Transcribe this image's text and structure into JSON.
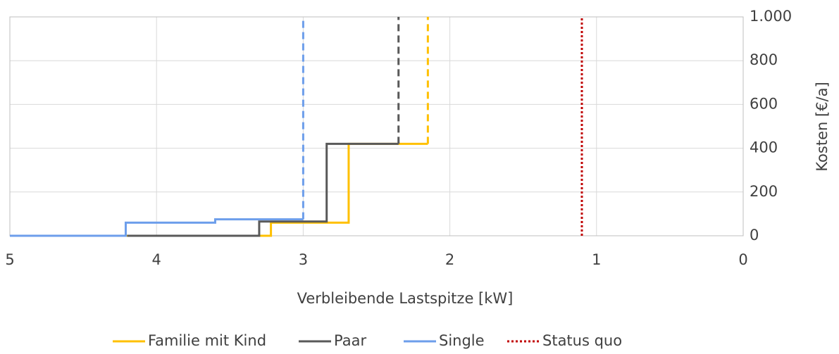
{
  "chart_data": {
    "type": "line",
    "x_label": "Verbleibende Lastspitze [kW]",
    "y_label": "Kosten [€/a]",
    "xlim": [
      5,
      0
    ],
    "xticks": [
      5,
      4,
      3,
      2,
      1,
      0
    ],
    "ylim": [
      0,
      1000
    ],
    "yticks": [
      0,
      200,
      400,
      600,
      800,
      {
        "value": 1000,
        "label": "1.000"
      }
    ],
    "grid": true,
    "legend": "bottom",
    "series": [
      {
        "name": "Familie mit Kind",
        "color": "#ffc000",
        "style": "solid",
        "dashed_from": 5,
        "x": [
          5,
          3.22,
          3.22,
          2.69,
          2.69,
          2.15,
          2.15
        ],
        "values": [
          0,
          0,
          60,
          60,
          420,
          420,
          1000
        ]
      },
      {
        "name": "Paar",
        "color": "#595959",
        "style": "solid",
        "dashed_from": 5,
        "x": [
          4.2,
          3.3,
          3.3,
          2.84,
          2.84,
          2.35,
          2.35
        ],
        "values": [
          0,
          0,
          65,
          65,
          420,
          420,
          1000
        ]
      },
      {
        "name": "Single",
        "color": "#6d9eeb",
        "style": "solid",
        "dashed_from": 5,
        "x": [
          5,
          4.21,
          4.21,
          3.6,
          3.6,
          3.0,
          3.0
        ],
        "values": [
          0,
          0,
          60,
          60,
          75,
          75,
          1000
        ]
      },
      {
        "name": "Status quo",
        "color": "#c00000",
        "style": "dotted",
        "dashed_from": 0,
        "x": [
          1.1,
          1.1
        ],
        "values": [
          0,
          1000
        ]
      }
    ]
  }
}
